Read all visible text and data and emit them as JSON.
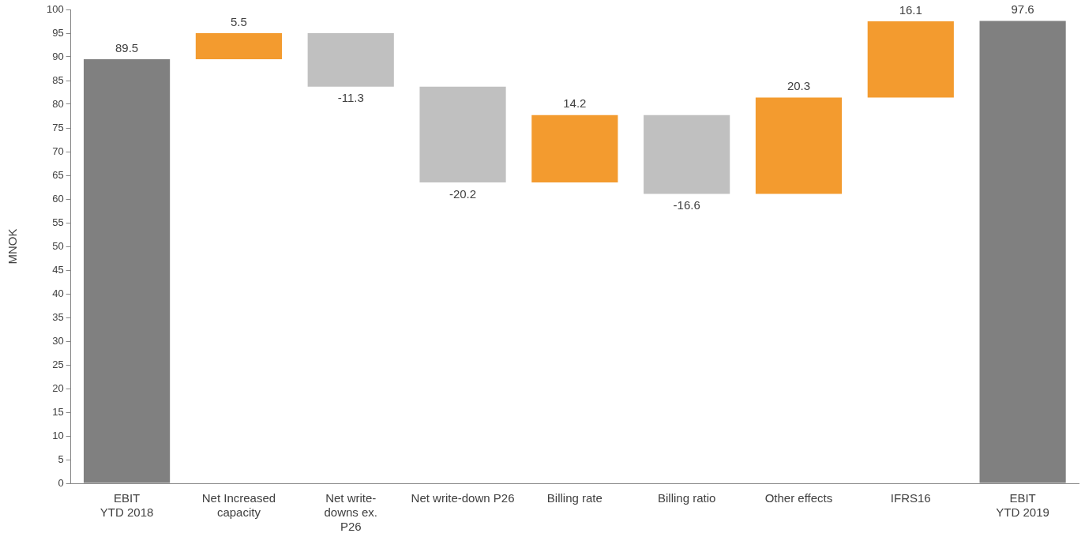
{
  "chart_data": {
    "type": "bar",
    "ylabel": "MNOK",
    "categories": [
      "EBIT\nYTD 2018",
      "Net Increased\ncapacity",
      "Net write-\ndowns ex.\nP26",
      "Net write-down P26",
      "Billing rate",
      "Billing ratio",
      "Other effects",
      "IFRS16",
      "EBIT\nYTD 2019"
    ],
    "base": [
      0,
      89.5,
      95,
      83.7,
      63.5,
      77.7,
      61.1,
      81.4,
      0
    ],
    "values": [
      89.5,
      5.5,
      -11.3,
      -20.2,
      14.2,
      -16.6,
      20.3,
      16.1,
      97.6
    ],
    "colors": [
      "#808080",
      "#f39b2f",
      "#c0c0c0",
      "#c0c0c0",
      "#f39b2f",
      "#c0c0c0",
      "#f39b2f",
      "#f39b2f",
      "#808080"
    ],
    "ylim": [
      0,
      100
    ],
    "yticks": [
      0,
      5,
      10,
      15,
      20,
      25,
      30,
      35,
      40,
      45,
      50,
      55,
      60,
      65,
      70,
      75,
      80,
      85,
      90,
      95,
      100
    ],
    "grid": false,
    "legend": false,
    "data_labels": true
  }
}
